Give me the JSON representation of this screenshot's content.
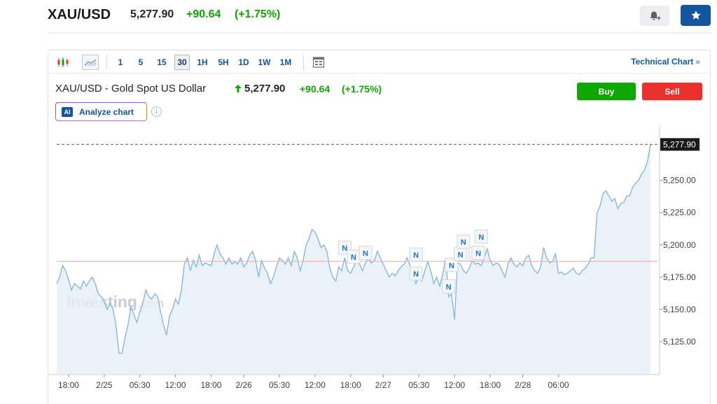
{
  "header": {
    "symbol": "XAU/USD",
    "price": "5,277.90",
    "change": "+90.64",
    "change_pct": "(+1.75%)",
    "alert_icon": "bell-plus-icon",
    "watchlist_icon": "star-icon"
  },
  "toolbar": {
    "chart_type_icons": [
      "candlestick-icon",
      "area-chart-icon"
    ],
    "timeframes": [
      "1",
      "5",
      "15",
      "30",
      "1H",
      "5H",
      "1D",
      "1W",
      "1M"
    ],
    "active_timeframe": "30",
    "calendar_icon": "calendar-icon",
    "technical_chart_label": "Technical Chart",
    "technical_chart_arrow": "»"
  },
  "instrument": {
    "title": "XAU/USD - Gold Spot US Dollar",
    "price": "5,277.90",
    "change": "+90.64",
    "change_pct": "(+1.75%)",
    "buy_label": "Buy",
    "sell_label": "Sell",
    "analyze_badge": "AI",
    "analyze_label": "Analyze chart",
    "info_icon": "i"
  },
  "colors": {
    "up": "#0ea600",
    "down": "#e9322c",
    "brand": "#1256a0",
    "line": "#7fb3e0",
    "area": "#e6eef6"
  },
  "chart_data": {
    "type": "area",
    "watermark": "Investing",
    "watermark_suffix": ".com",
    "last_value_label": "5,277.90",
    "last_value": 5277.9,
    "reference_value": 5187.26,
    "ylim": [
      5100,
      5290
    ],
    "y_ticks": [
      5125,
      5150,
      5175,
      5200,
      5225,
      5250
    ],
    "y_tick_labels": [
      "5,125.00",
      "5,150.00",
      "5,175.00",
      "5,200.00",
      "5,225.00",
      "5,250.00"
    ],
    "x_tick_labels": [
      "18:00",
      "2/25",
      "05:30",
      "12:00",
      "18:00",
      "2/26",
      "05:30",
      "12:00",
      "18:00",
      "2/27",
      "05:30",
      "12:00",
      "18:00",
      "2/28",
      "06:00"
    ],
    "x_tick_index": [
      4,
      16,
      28,
      40,
      52,
      63,
      75,
      87,
      99,
      110,
      122,
      134,
      146,
      157,
      169
    ],
    "values": [
      5170,
      5175,
      5184,
      5180,
      5173,
      5165,
      5170,
      5168,
      5166,
      5172,
      5168,
      5172,
      5175,
      5170,
      5162,
      5160,
      5156,
      5150,
      5155,
      5150,
      5137,
      5116,
      5116,
      5128,
      5138,
      5152,
      5146,
      5140,
      5148,
      5155,
      5165,
      5160,
      5158,
      5162,
      5160,
      5148,
      5138,
      5130,
      5145,
      5150,
      5158,
      5154,
      5165,
      5185,
      5190,
      5180,
      5188,
      5183,
      5192,
      5184,
      5186,
      5185,
      5184,
      5193,
      5200,
      5193,
      5190,
      5185,
      5190,
      5185,
      5187,
      5185,
      5190,
      5183,
      5186,
      5192,
      5195,
      5188,
      5175,
      5188,
      5182,
      5178,
      5170,
      5175,
      5183,
      5190,
      5188,
      5185,
      5190,
      5184,
      5195,
      5190,
      5180,
      5188,
      5200,
      5205,
      5212,
      5210,
      5205,
      5198,
      5200,
      5195,
      5182,
      5175,
      5172,
      5183,
      5180,
      5190,
      5180,
      5178,
      5183,
      5188,
      5185,
      5180,
      5186,
      5190,
      5186,
      5188,
      5195,
      5190,
      5185,
      5180,
      5175,
      5178,
      5176,
      5180,
      5183,
      5185,
      5190,
      5184,
      5178,
      5170,
      5176,
      5172,
      5180,
      5187,
      5180,
      5170,
      5175,
      5168,
      5177,
      5190,
      5160,
      5162,
      5142,
      5186,
      5185,
      5180,
      5178,
      5182,
      5188,
      5185,
      5186,
      5184,
      5190,
      5197,
      5188,
      5184,
      5186,
      5185,
      5180,
      5175,
      5185,
      5190,
      5185,
      5183,
      5186,
      5184,
      5190,
      5192,
      5184,
      5180,
      5178,
      5183,
      5198,
      5190,
      5186,
      5187,
      5193,
      5178,
      5179,
      5177,
      5178,
      5180,
      5182,
      5178,
      5177,
      5180,
      5182,
      5185,
      5190,
      5190,
      5225,
      5230,
      5240,
      5242,
      5238,
      5234,
      5236,
      5228,
      5232,
      5233,
      5238,
      5238,
      5245,
      5248,
      5250,
      5255,
      5258,
      5265,
      5277.9
    ],
    "news_markers": [
      {
        "label": "N",
        "index": 97
      },
      {
        "label": "N",
        "index": 100
      },
      {
        "label": "N",
        "index": 104
      },
      {
        "label": "N",
        "index": 121
      },
      {
        "label": "N",
        "index": 121
      },
      {
        "label": "N",
        "index": 132
      },
      {
        "label": "N",
        "index": 133
      },
      {
        "label": "N",
        "index": 136
      },
      {
        "label": "N",
        "index": 137
      },
      {
        "label": "N",
        "index": 141
      },
      {
        "label": "N",
        "index": 142
      },
      {
        "label": "N",
        "index": 143
      }
    ]
  }
}
